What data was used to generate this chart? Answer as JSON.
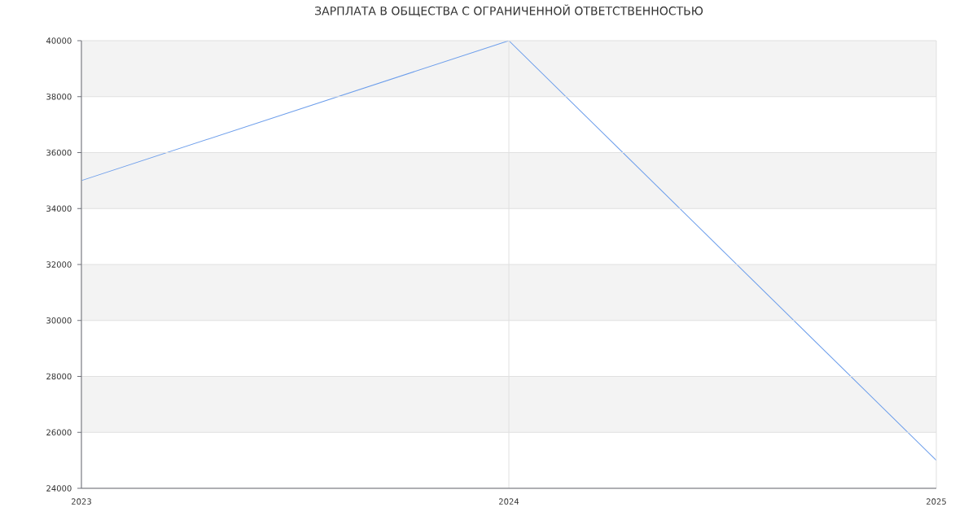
{
  "chart_data": {
    "type": "line",
    "title": "ЗАРПЛАТА В ОБЩЕСТВА С ОГРАНИЧЕННОЙ ОТВЕТСТВЕННОСТЬЮ",
    "x": [
      2023,
      2024,
      2025
    ],
    "series": [
      {
        "color": "#6d9eeb",
        "values": [
          35000,
          40000,
          25000
        ]
      }
    ],
    "xlim": [
      2023,
      2025
    ],
    "xticks": [
      2023,
      2024,
      2025
    ],
    "ylim": [
      24000,
      40000
    ],
    "yticks": [
      24000,
      26000,
      28000,
      30000,
      32000,
      34000,
      36000,
      38000,
      40000
    ],
    "grid": true,
    "bands": [
      {
        "axis": "y",
        "from": 26000,
        "to": 28000,
        "color": "#f3f3f3"
      },
      {
        "axis": "y",
        "from": 30000,
        "to": 32000,
        "color": "#f3f3f3"
      },
      {
        "axis": "y",
        "from": 34000,
        "to": 36000,
        "color": "#f3f3f3"
      },
      {
        "axis": "y",
        "from": 38000,
        "to": 40000,
        "color": "#f3f3f3"
      }
    ]
  }
}
